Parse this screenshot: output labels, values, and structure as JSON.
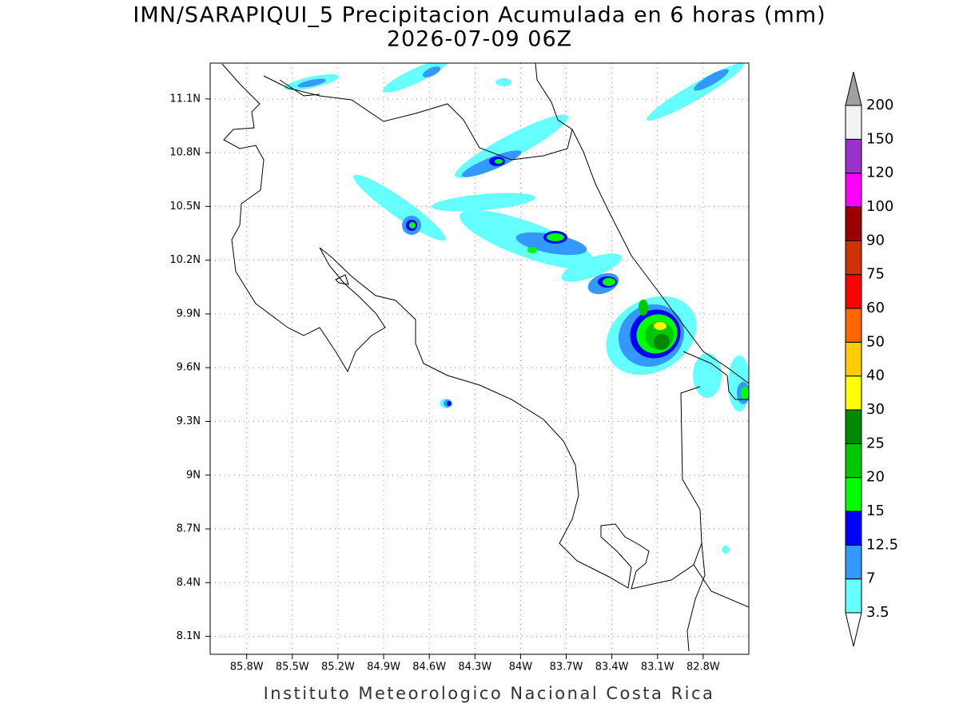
{
  "header": {
    "title": "IMN/SARAPIQUI_5 Precipitacion Acumulada en 6 horas (mm)",
    "subtitle": "2026-07-09 06Z"
  },
  "map": {
    "xlim": [
      -86.04,
      -82.5
    ],
    "ylim": [
      8.0,
      11.3
    ],
    "grid": true,
    "xticks": [
      {
        "value": -85.8,
        "label": "85.8W"
      },
      {
        "value": -85.5,
        "label": "85.5W"
      },
      {
        "value": -85.2,
        "label": "85.2W"
      },
      {
        "value": -84.9,
        "label": "84.9W"
      },
      {
        "value": -84.6,
        "label": "84.6W"
      },
      {
        "value": -84.3,
        "label": "84.3W"
      },
      {
        "value": -84.0,
        "label": "84W"
      },
      {
        "value": -83.7,
        "label": "83.7W"
      },
      {
        "value": -83.4,
        "label": "83.4W"
      },
      {
        "value": -83.1,
        "label": "83.1W"
      },
      {
        "value": -82.8,
        "label": "82.8W"
      }
    ],
    "yticks": [
      {
        "value": 8.1,
        "label": "8.1N"
      },
      {
        "value": 8.4,
        "label": "8.4N"
      },
      {
        "value": 8.7,
        "label": "8.7N"
      },
      {
        "value": 9.0,
        "label": "9N"
      },
      {
        "value": 9.3,
        "label": "9.3N"
      },
      {
        "value": 9.6,
        "label": "9.6N"
      },
      {
        "value": 9.9,
        "label": "9.9N"
      },
      {
        "value": 10.2,
        "label": "10.2N"
      },
      {
        "value": 10.5,
        "label": "10.5N"
      },
      {
        "value": 10.8,
        "label": "10.8N"
      },
      {
        "value": 11.1,
        "label": "11.1N"
      }
    ]
  },
  "colorbar": {
    "levels": [
      3.5,
      7,
      12.5,
      15,
      20,
      25,
      30,
      40,
      50,
      60,
      75,
      90,
      100,
      120,
      150,
      200
    ],
    "colors": [
      "#66ffff",
      "#3399ff",
      "#0000ff",
      "#00ff00",
      "#00c800",
      "#008800",
      "#ffff00",
      "#ffcc00",
      "#ff6600",
      "#ff0000",
      "#cc3300",
      "#990000",
      "#ff00ff",
      "#9933cc",
      "#f2f2f2"
    ],
    "under_color": "#ffffff",
    "over_color": "#a0a0a0"
  },
  "footer": "Instituto Meteorologico Nacional Costa Rica"
}
